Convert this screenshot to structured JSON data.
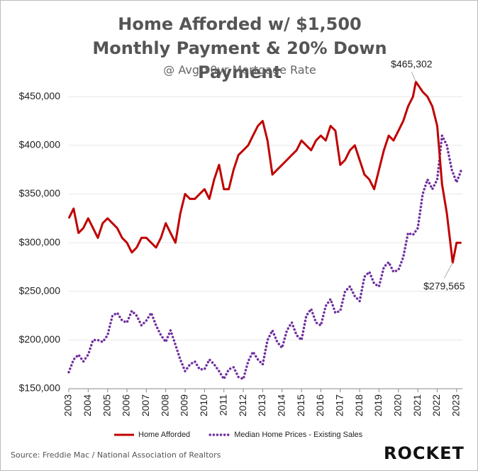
{
  "chart_data": {
    "type": "line",
    "title": "Home Afforded w/ $1,500 Monthly Payment & 20% Down Payment",
    "subtitle": "@ Avg 30yr Mortgage Rate",
    "source": "Source: Freddie Mac / National Association of Realtors",
    "logo": "ROCKET",
    "xlim": [
      2003,
      2023.3
    ],
    "xticks": [
      2003,
      2004,
      2005,
      2006,
      2007,
      2008,
      2009,
      2010,
      2011,
      2012,
      2013,
      2014,
      2015,
      2016,
      2017,
      2018,
      2019,
      2020,
      2021,
      2022,
      2023
    ],
    "ylim": [
      150000,
      475000
    ],
    "yticks": [
      {
        "value": 150000,
        "label": "$150,000"
      },
      {
        "value": 200000,
        "label": "$200,000"
      },
      {
        "value": 250000,
        "label": "$250,000"
      },
      {
        "value": 300000,
        "label": "$300,000"
      },
      {
        "value": 350000,
        "label": "$350,000"
      },
      {
        "value": 400000,
        "label": "$400,000"
      },
      {
        "value": 450000,
        "label": "$450,000"
      }
    ],
    "legend": "bottom",
    "series": [
      {
        "name": "Home Afforded",
        "color": "#c00000",
        "style": "solid",
        "x": [
          2003,
          2003.25,
          2003.5,
          2003.75,
          2004,
          2004.25,
          2004.5,
          2004.75,
          2005,
          2005.25,
          2005.5,
          2005.75,
          2006,
          2006.25,
          2006.5,
          2006.75,
          2007,
          2007.25,
          2007.5,
          2007.75,
          2008,
          2008.25,
          2008.5,
          2008.75,
          2009,
          2009.25,
          2009.5,
          2009.75,
          2010,
          2010.25,
          2010.5,
          2010.75,
          2011,
          2011.25,
          2011.5,
          2011.75,
          2012,
          2012.25,
          2012.5,
          2012.75,
          2013,
          2013.25,
          2013.5,
          2013.75,
          2014,
          2014.25,
          2014.5,
          2014.75,
          2015,
          2015.25,
          2015.5,
          2015.75,
          2016,
          2016.25,
          2016.5,
          2016.75,
          2017,
          2017.25,
          2017.5,
          2017.75,
          2018,
          2018.25,
          2018.5,
          2018.75,
          2019,
          2019.25,
          2019.5,
          2019.75,
          2020,
          2020.25,
          2020.5,
          2020.75,
          2020.9,
          2021.25,
          2021.5,
          2021.75,
          2022,
          2022.25,
          2022.5,
          2022.8,
          2023,
          2023.25
        ],
        "values": [
          325000,
          335000,
          310000,
          315000,
          325000,
          315000,
          305000,
          320000,
          325000,
          320000,
          315000,
          305000,
          300000,
          290000,
          295000,
          305000,
          305000,
          300000,
          295000,
          305000,
          320000,
          310000,
          300000,
          330000,
          350000,
          345000,
          345000,
          350000,
          355000,
          345000,
          365000,
          380000,
          355000,
          355000,
          375000,
          390000,
          395000,
          400000,
          410000,
          420000,
          425000,
          405000,
          370000,
          375000,
          380000,
          385000,
          390000,
          395000,
          405000,
          400000,
          395000,
          405000,
          410000,
          405000,
          420000,
          415000,
          380000,
          385000,
          395000,
          400000,
          385000,
          370000,
          365000,
          355000,
          375000,
          395000,
          410000,
          405000,
          415000,
          425000,
          440000,
          450000,
          465302,
          455000,
          450000,
          440000,
          420000,
          360000,
          330000,
          279565,
          300000,
          300000
        ]
      },
      {
        "name": "Median Home Prices - Existing Sales",
        "color": "#7030a0",
        "style": "dotted",
        "x": [
          2003,
          2003.25,
          2003.5,
          2003.75,
          2004,
          2004.25,
          2004.5,
          2004.75,
          2005,
          2005.25,
          2005.5,
          2005.75,
          2006,
          2006.25,
          2006.5,
          2006.75,
          2007,
          2007.25,
          2007.5,
          2007.75,
          2008,
          2008.25,
          2008.5,
          2008.75,
          2009,
          2009.25,
          2009.5,
          2009.75,
          2010,
          2010.25,
          2010.5,
          2010.75,
          2011,
          2011.25,
          2011.5,
          2011.75,
          2012,
          2012.25,
          2012.5,
          2012.75,
          2013,
          2013.25,
          2013.5,
          2013.75,
          2014,
          2014.25,
          2014.5,
          2014.75,
          2015,
          2015.25,
          2015.5,
          2015.75,
          2016,
          2016.25,
          2016.5,
          2016.75,
          2017,
          2017.25,
          2017.5,
          2017.75,
          2018,
          2018.25,
          2018.5,
          2018.75,
          2019,
          2019.25,
          2019.5,
          2019.75,
          2020,
          2020.25,
          2020.5,
          2020.75,
          2021,
          2021.25,
          2021.5,
          2021.75,
          2022,
          2022.25,
          2022.5,
          2022.75,
          2023,
          2023.25
        ],
        "values": [
          167000,
          180000,
          185000,
          178000,
          185000,
          200000,
          200000,
          198000,
          205000,
          225000,
          228000,
          220000,
          218000,
          230000,
          225000,
          215000,
          220000,
          228000,
          215000,
          205000,
          198000,
          210000,
          195000,
          180000,
          168000,
          175000,
          178000,
          170000,
          170000,
          180000,
          175000,
          168000,
          160000,
          170000,
          172000,
          162000,
          160000,
          178000,
          188000,
          180000,
          175000,
          200000,
          210000,
          198000,
          192000,
          210000,
          218000,
          205000,
          200000,
          225000,
          232000,
          218000,
          215000,
          235000,
          242000,
          228000,
          230000,
          250000,
          255000,
          245000,
          240000,
          265000,
          270000,
          258000,
          255000,
          275000,
          280000,
          270000,
          272000,
          285000,
          310000,
          308000,
          315000,
          350000,
          365000,
          355000,
          365000,
          410000,
          400000,
          375000,
          362000,
          375000
        ]
      }
    ],
    "annotations": [
      {
        "x": 2020.9,
        "y": 465302,
        "label": "$465,302"
      },
      {
        "x": 2022.8,
        "y": 279565,
        "label": "$279,565"
      }
    ]
  }
}
